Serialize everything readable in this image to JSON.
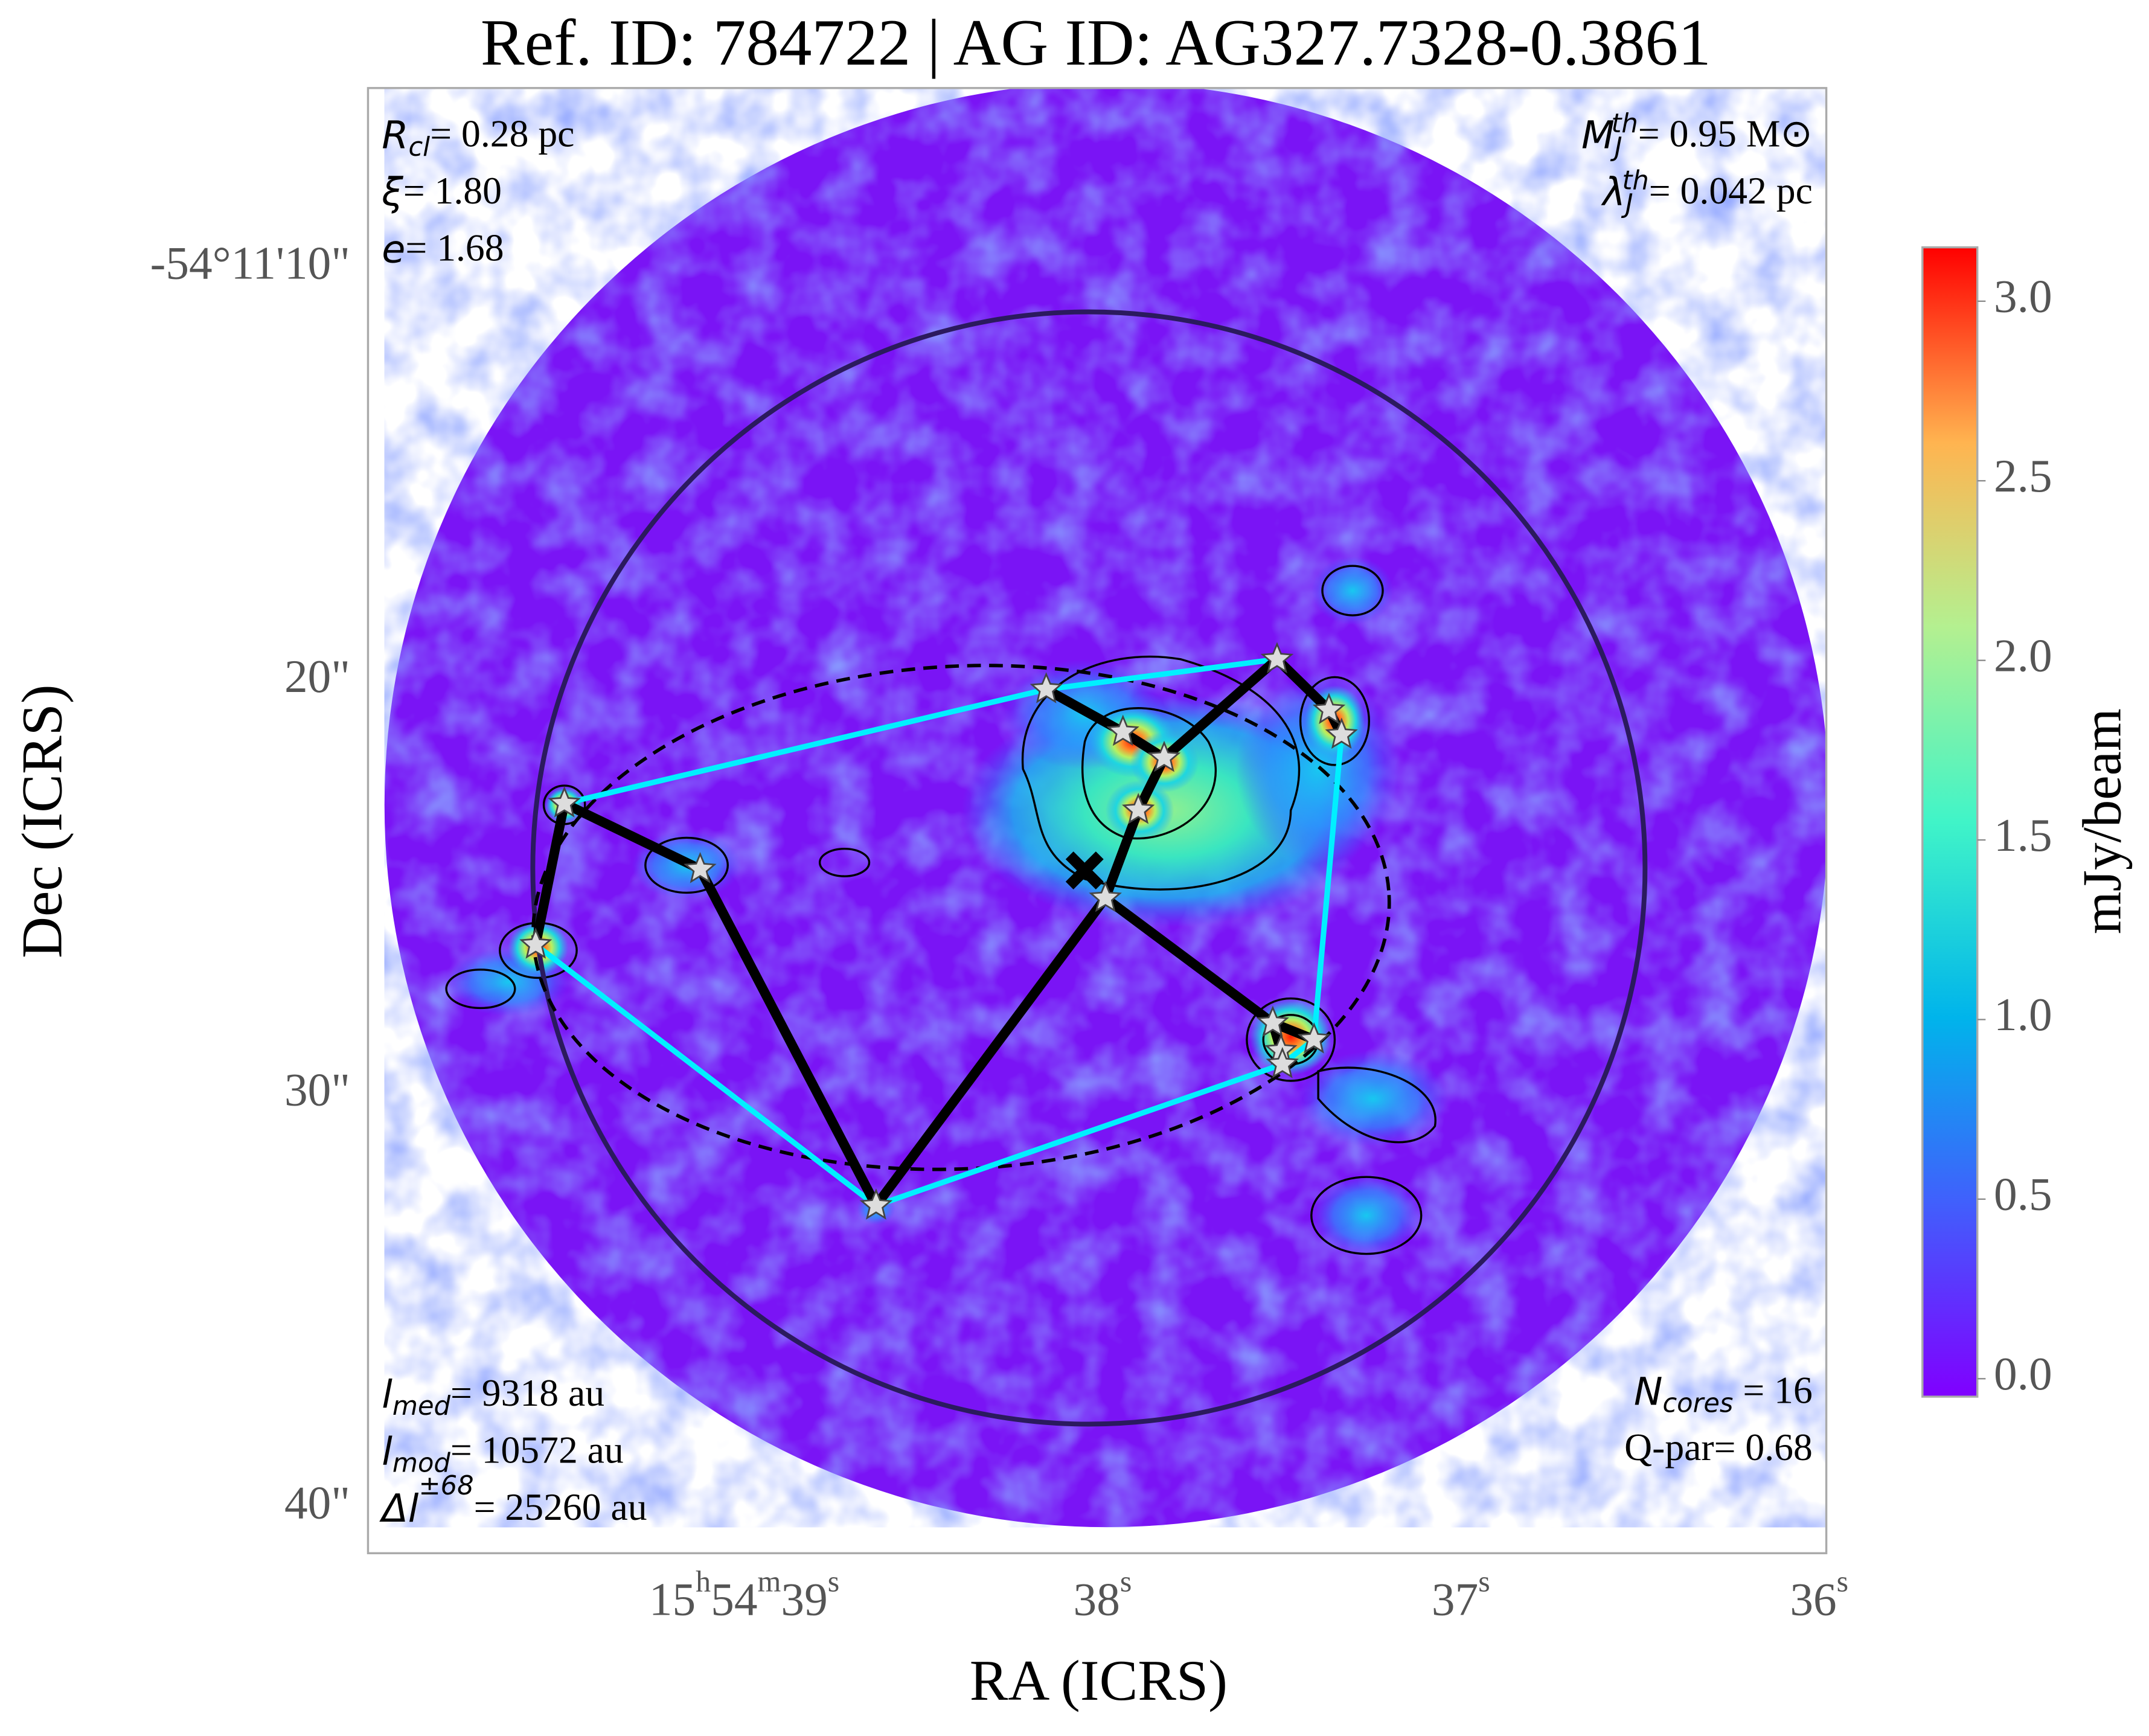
{
  "chart_data": {
    "type": "skymap",
    "title": "Ref. ID: 784722 | AG ID: AG327.7328-0.3861",
    "x_label": "RA (ICRS)",
    "y_label": "Dec (ICRS)",
    "xlim": [
      40.05,
      35.98
    ],
    "xticks": [
      {
        "value": 39,
        "label": "15h54m39s"
      },
      {
        "value": 38,
        "label": "38s"
      },
      {
        "value": 37,
        "label": "37s"
      },
      {
        "value": 36,
        "label": "36s"
      }
    ],
    "ylim": [
      5.65,
      41.1
    ],
    "yticks": [
      {
        "value": 10,
        "label": "-54°11'10\""
      },
      {
        "value": 20,
        "label": "20\""
      },
      {
        "value": 30,
        "label": "30\""
      },
      {
        "value": 40,
        "label": "40\""
      }
    ],
    "cores": {
      "ra": [
        39.502,
        39.123,
        39.582,
        38.632,
        38.157,
        37.943,
        37.828,
        37.9,
        37.992,
        37.513,
        37.368,
        37.333,
        37.525,
        37.41,
        37.502,
        37.498
      ],
      "dec": [
        22.96,
        24.55,
        26.38,
        32.69,
        20.2,
        21.23,
        21.86,
        23.12,
        25.25,
        19.47,
        20.7,
        21.3,
        28.27,
        28.67,
        28.94,
        29.27
      ],
      "color": "#dddddd"
    },
    "centroid": {
      "ra": 38.05,
      "dec": 24.58
    },
    "mst_edges": [
      [
        0,
        1
      ],
      [
        1,
        3
      ],
      [
        3,
        8
      ],
      [
        8,
        7
      ],
      [
        7,
        6
      ],
      [
        6,
        5
      ],
      [
        5,
        4
      ],
      [
        6,
        9
      ],
      [
        9,
        10
      ],
      [
        10,
        11
      ],
      [
        8,
        12
      ],
      [
        12,
        13
      ],
      [
        12,
        14
      ],
      [
        14,
        15
      ],
      [
        0,
        2
      ]
    ],
    "mst_color": "#000000",
    "hull": [
      0,
      4,
      9,
      10,
      11,
      13,
      15,
      3,
      2
    ],
    "hull_color": "#00f0ff",
    "colorbar": {
      "label": "mJy/beam",
      "lim": [
        -0.05,
        3.15
      ],
      "ticks": [
        {
          "value": 0,
          "label": "0.0"
        },
        {
          "value": 0.5,
          "label": "0.5"
        },
        {
          "value": 1,
          "label": "1.0"
        },
        {
          "value": 1.5,
          "label": "1.5"
        },
        {
          "value": 2,
          "label": "2.0"
        },
        {
          "value": 2.5,
          "label": "2.5"
        },
        {
          "value": 3,
          "label": "3.0"
        }
      ]
    },
    "annotations": [
      {
        "corner": "top-left",
        "lines": [
          {
            "symbol": "R",
            "sub": "cl",
            "text": "= 0.28 pc"
          },
          {
            "symbol": "ξ",
            "text": "= 1.80"
          },
          {
            "symbol": "e",
            "text": "= 1.68"
          }
        ]
      },
      {
        "corner": "top-right",
        "lines": [
          {
            "symbol": "M",
            "sub": "J",
            "sup": "th",
            "text": "= 0.95 M⊙"
          },
          {
            "symbol": "λ",
            "sub": "J",
            "sup": "th",
            "text": "= 0.042 pc"
          }
        ]
      },
      {
        "corner": "bottom-left",
        "lines": [
          {
            "symbol": "l",
            "sub": "med",
            "text": "= 9318 au"
          },
          {
            "symbol": "l",
            "sub": "mod",
            "text": "= 10572 au"
          },
          {
            "symbol": "Δl",
            "sup": "±68",
            "text": "= 25260 au"
          }
        ]
      },
      {
        "corner": "bottom-right",
        "lines": [
          {
            "symbol": "N",
            "sub": "cores",
            "text": " = 16"
          },
          {
            "text": "Q-par= 0.68"
          }
        ]
      }
    ]
  }
}
